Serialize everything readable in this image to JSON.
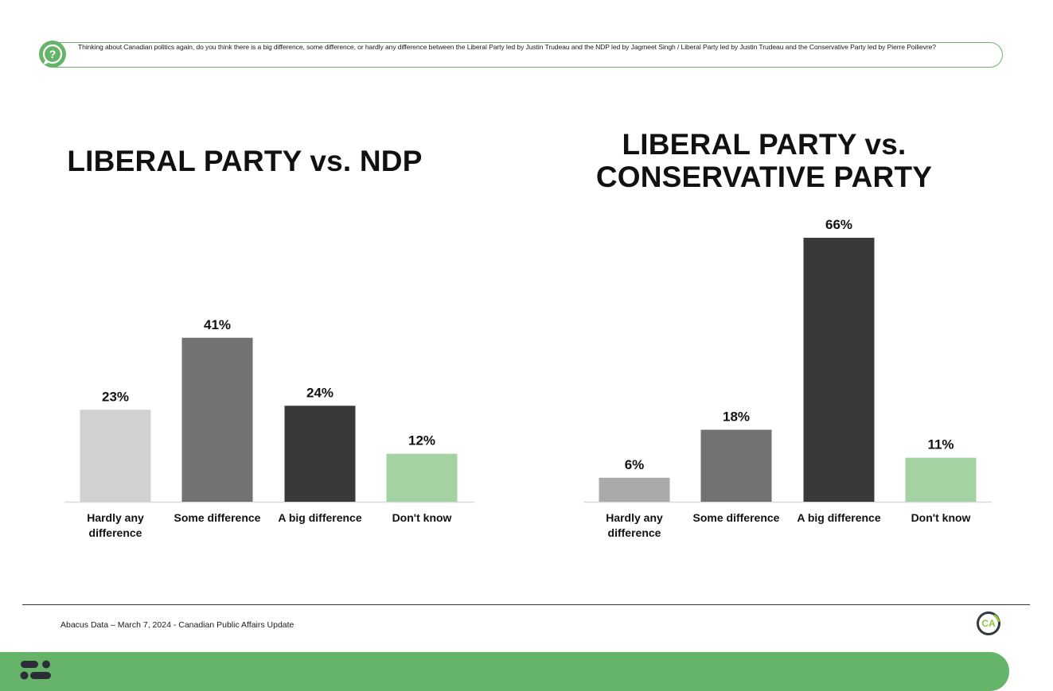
{
  "question": {
    "icon": "question-bubble-icon",
    "text": "Thinking about Canadian politics again, do you think there is a big difference, some difference, or hardly any difference between the Liberal Party led by Justin Trudeau and the NDP led by Jagmeet Singh / Liberal Party led by Justin Trudeau and the Conservative Party led by Pierre Poilievre?"
  },
  "chart_data": [
    {
      "type": "bar",
      "title": "LIBERAL PARTY vs. NDP",
      "categories": [
        "Hardly any difference",
        "Some difference",
        "A big difference",
        "Don't know"
      ],
      "category_lines": [
        [
          "Hardly any",
          "difference"
        ],
        [
          "Some difference"
        ],
        [
          "A big difference"
        ],
        [
          "Don't know"
        ]
      ],
      "values": [
        23,
        41,
        24,
        12
      ],
      "value_labels": [
        "23%",
        "41%",
        "24%",
        "12%"
      ],
      "colors": [
        "#d0d1d0",
        "#707372",
        "#383a39",
        "#a4d3a3"
      ],
      "unit": "%",
      "grid": false,
      "legend": "none"
    },
    {
      "type": "bar",
      "title": "LIBERAL PARTY vs. CONSERVATIVE PARTY",
      "categories": [
        "Hardly any difference",
        "Some difference",
        "A big difference",
        "Don't know"
      ],
      "category_lines": [
        [
          "Hardly any",
          "difference"
        ],
        [
          "Some difference"
        ],
        [
          "A big difference"
        ],
        [
          "Don't know"
        ]
      ],
      "values": [
        6,
        18,
        66,
        11
      ],
      "value_labels": [
        "6%",
        "18%",
        "66%",
        "11%"
      ],
      "colors": [
        "#aaaaaa",
        "#707372",
        "#383a39",
        "#a4d3a3"
      ],
      "unit": "%",
      "grid": false,
      "legend": "none"
    }
  ],
  "titles": {
    "left": "LIBERAL PARTY vs. NDP",
    "right_line1": "LIBERAL PARTY vs.",
    "right_line2": "CONSERVATIVE PARTY"
  },
  "footer": {
    "source": "Abacus Data – March 7, 2024 - Canadian Public Affairs Update",
    "badge": "CA",
    "badge_icon": "canadian-affairs-badge-icon",
    "brand_icon": "abacus-logo-icon"
  },
  "colors": {
    "accent_green": "#66b46a",
    "badge_green": "#8cc63f"
  }
}
